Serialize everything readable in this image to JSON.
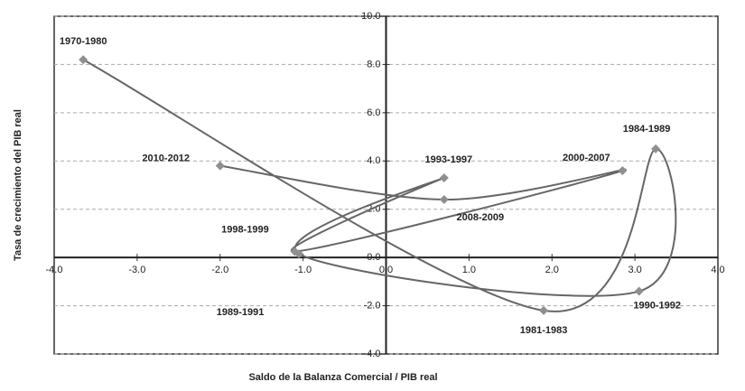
{
  "chart_data": {
    "type": "scatter",
    "y_label": "Tasa de crecimiento del PIB real",
    "x_label": "Saldo de la Balanza Comercial / PIB real",
    "categories": [
      "1970-1980",
      "1981-1983",
      "1984-1989",
      "1990-1992",
      "1989-1991",
      "1993-1997",
      "1998-1999",
      "2000-2007",
      "2008-2009",
      "2010-2012"
    ],
    "x": [
      -3.65,
      1.9,
      3.25,
      3.05,
      -1.05,
      0.7,
      -1.1,
      2.85,
      0.7,
      -2.0
    ],
    "values": [
      8.2,
      -2.2,
      4.5,
      -1.4,
      0.15,
      3.3,
      0.25,
      3.6,
      2.4,
      3.8
    ],
    "color": "#8f8f8f",
    "line_color": "#666666",
    "xlim": [
      -4,
      4
    ],
    "xticks": [
      {
        "value": -4,
        "label": "-4.0"
      },
      {
        "value": -3,
        "label": "-3.0"
      },
      {
        "value": -2,
        "label": "-2.0"
      },
      {
        "value": -1,
        "label": "-1.0"
      },
      {
        "value": 0,
        "label": "0.0"
      },
      {
        "value": 1,
        "label": "1.0"
      },
      {
        "value": 2,
        "label": "2.0"
      },
      {
        "value": 3,
        "label": "3.0"
      },
      {
        "value": 4,
        "label": "4.0"
      }
    ],
    "ylim": [
      -4,
      10
    ],
    "yticks": [
      {
        "value": -4,
        "label": "-4.0"
      },
      {
        "value": -2,
        "label": "-2.0"
      },
      {
        "value": 0,
        "label": "0.0"
      },
      {
        "value": 2,
        "label": "2.0"
      },
      {
        "value": 4,
        "label": "4.0"
      },
      {
        "value": 6,
        "label": "6.0"
      },
      {
        "value": 8,
        "label": "8.0"
      },
      {
        "value": 10,
        "label": "10.0"
      }
    ],
    "grid": true
  }
}
